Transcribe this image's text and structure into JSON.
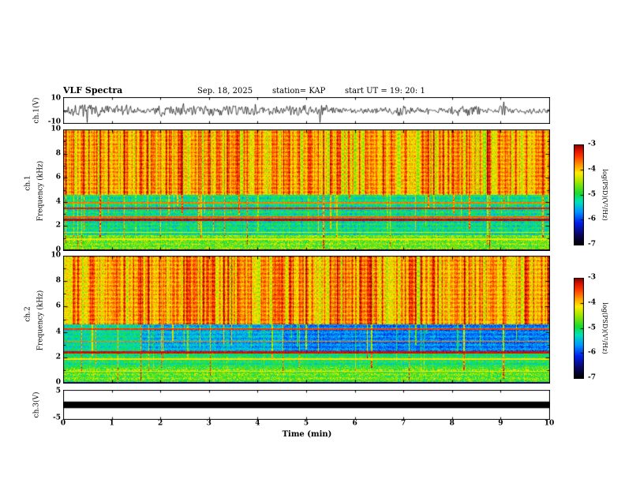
{
  "title": {
    "main": "VLF Spectra",
    "date": "Sep. 18, 2025",
    "station": "station= KAP",
    "start_ut": "start UT =   19: 20: 1"
  },
  "axes": {
    "x": {
      "label": "Time (min)",
      "ticks": [
        "0",
        "1",
        "2",
        "3",
        "4",
        "5",
        "6",
        "7",
        "8",
        "9",
        "10"
      ]
    },
    "ch1_wave": {
      "label": "ch.1(V)",
      "top_tick": "10",
      "bottom_tick": "-10"
    },
    "ch1_spec": {
      "channel": "ch.1",
      "label": "Frequency (kHz)",
      "ticks": [
        "0",
        "2",
        "4",
        "6",
        "8",
        "10"
      ]
    },
    "ch2_spec": {
      "channel": "ch.2",
      "label": "Frequency (kHz)",
      "ticks": [
        "0",
        "2",
        "4",
        "6",
        "8",
        "10"
      ]
    },
    "ch3_wave": {
      "label": "ch.3(V)",
      "top_tick": "5",
      "bottom_tick": "-5"
    }
  },
  "colorbars": [
    {
      "label": "log(PSD)(V²/Hz)",
      "ticks": [
        "-3",
        "-4",
        "-5",
        "-6",
        "-7"
      ]
    },
    {
      "label": "log(PSD)(V²/Hz)",
      "ticks": [
        "-3",
        "-4",
        "-5",
        "-6",
        "-7"
      ]
    }
  ],
  "chart_data": [
    {
      "type": "line",
      "panel": "ch1_waveform",
      "ylabel": "ch.1(V)",
      "xlim_min": [
        0,
        10
      ],
      "ylim_V": [
        -10,
        10
      ],
      "description": "Dense broadband noise waveform about 0 V for the full 10 minutes, typical excursions ±3 to ±8 V",
      "render": {
        "seed": 7,
        "base_amplitude_V": 3,
        "max_amplitude_V": 9
      }
    },
    {
      "type": "heatmap",
      "panel": "ch1_spectrogram",
      "xlabel": "Time (min)",
      "ylabel": "Frequency (kHz)",
      "xlim": [
        0,
        10
      ],
      "ylim_khz": [
        0,
        10
      ],
      "value_label": "log(PSD)(V²/Hz)",
      "value_range": [
        -7,
        -3
      ],
      "legend_position": "right colorbar",
      "description": "Intense red broadband emission above ~4.6 kHz with vertical sferic streaks reaching down through a green/cyan speckled background (1.2-4.6 kHz); yellow-green mottled band 0.15-1.25 kHz; strong dark-red horizontal lines near 2.55, 2.8, 3.5 and 3.95 kHz; dark strip at 0 kHz",
      "render": {
        "seed": 11,
        "striation": 0.16,
        "bands": [
          {
            "f0": 4.6,
            "f1": 10.01,
            "v": -3.85,
            "noise": 0.5,
            "column_texture": 0.75
          },
          {
            "f0": 1.25,
            "f1": 4.6,
            "v": -5.15,
            "noise": 0.85,
            "column_texture": 0.15
          },
          {
            "f0": 0.12,
            "f1": 1.25,
            "v": -4.65,
            "noise": 0.95,
            "column_texture": 0.1
          },
          {
            "f0": -0.01,
            "f1": 0.12,
            "v": -6.5,
            "noise": 0.4
          }
        ],
        "lines": [
          {
            "f": 2.55,
            "w": 0.1,
            "v": -3.15
          },
          {
            "f": 2.78,
            "w": 0.05,
            "v": -3.6
          },
          {
            "f": 3.52,
            "w": 0.07,
            "v": -3.3
          },
          {
            "f": 3.95,
            "w": 0.05,
            "v": -3.7
          },
          {
            "f": 1.48,
            "w": 0.04,
            "v": -4.3
          },
          {
            "f": 0.95,
            "w": 0.04,
            "v": -4.2
          }
        ],
        "streaks": {
          "probability": 0.1,
          "strength": 1.0,
          "max_depth_khz": 4.6
        }
      }
    },
    {
      "type": "heatmap",
      "panel": "ch2_spectrogram",
      "xlabel": "Time (min)",
      "ylabel": "Frequency (kHz)",
      "xlim": [
        0,
        10
      ],
      "ylim_khz": [
        0,
        10
      ],
      "value_label": "log(PSD)(V²/Hz)",
      "value_range": [
        -7,
        -3
      ],
      "legend_position": "right colorbar",
      "description": "Same red broadband emission above ~4.6 kHz with sferic streaks; depressed blue/cyan band 2.3-4.6 kHz (greener during first ~1.5 min, bluest after ~4.5 min); green speckle 1.25-2.3 kHz; yellow-green mottled band 0.15-1.25 kHz; dark-red lines near 2.45, 3.3 and 4.25 kHz",
      "render": {
        "seed": 29,
        "striation": 0.16,
        "bands": [
          {
            "f0": 4.6,
            "f1": 10.01,
            "v": -3.85,
            "noise": 0.5,
            "column_texture": 0.75
          },
          {
            "f0": 2.3,
            "f1": 4.6,
            "v": -5.75,
            "noise": 0.6,
            "column_texture": 0.1,
            "segments": [
              {
                "x0": 0,
                "x1": 1.6,
                "dv": 0.55
              },
              {
                "x0": 1.6,
                "x1": 4.5,
                "dv": 0.2
              },
              {
                "x0": 4.5,
                "x1": 10,
                "dv": 0
              }
            ]
          },
          {
            "f0": 1.25,
            "f1": 2.3,
            "v": -5.05,
            "noise": 0.8,
            "column_texture": 0.1
          },
          {
            "f0": 0.12,
            "f1": 1.25,
            "v": -4.7,
            "noise": 0.95,
            "column_texture": 0.1
          },
          {
            "f0": -0.01,
            "f1": 0.12,
            "v": -6.5,
            "noise": 0.4
          }
        ],
        "lines": [
          {
            "f": 2.45,
            "w": 0.09,
            "v": -3.2
          },
          {
            "f": 3.3,
            "w": 0.05,
            "v": -3.7
          },
          {
            "f": 4.25,
            "w": 0.06,
            "v": -3.45
          },
          {
            "f": 1.9,
            "w": 0.04,
            "v": -4.1
          },
          {
            "f": 0.95,
            "w": 0.04,
            "v": -4.2
          }
        ],
        "streaks": {
          "probability": 0.1,
          "strength": 1.0,
          "max_depth_khz": 4.6
        }
      }
    },
    {
      "type": "line",
      "panel": "ch3_waveform",
      "ylabel": "ch.3(V)",
      "xlim_min": [
        0,
        10
      ],
      "ylim_V": [
        -5,
        5
      ],
      "description": "Fully saturated flat signal drawn as a solid black bar about 0 V (≈ ±1 V) across the entire 10 minutes",
      "render": {
        "bar_halfwidth_V": 1.1
      }
    }
  ]
}
